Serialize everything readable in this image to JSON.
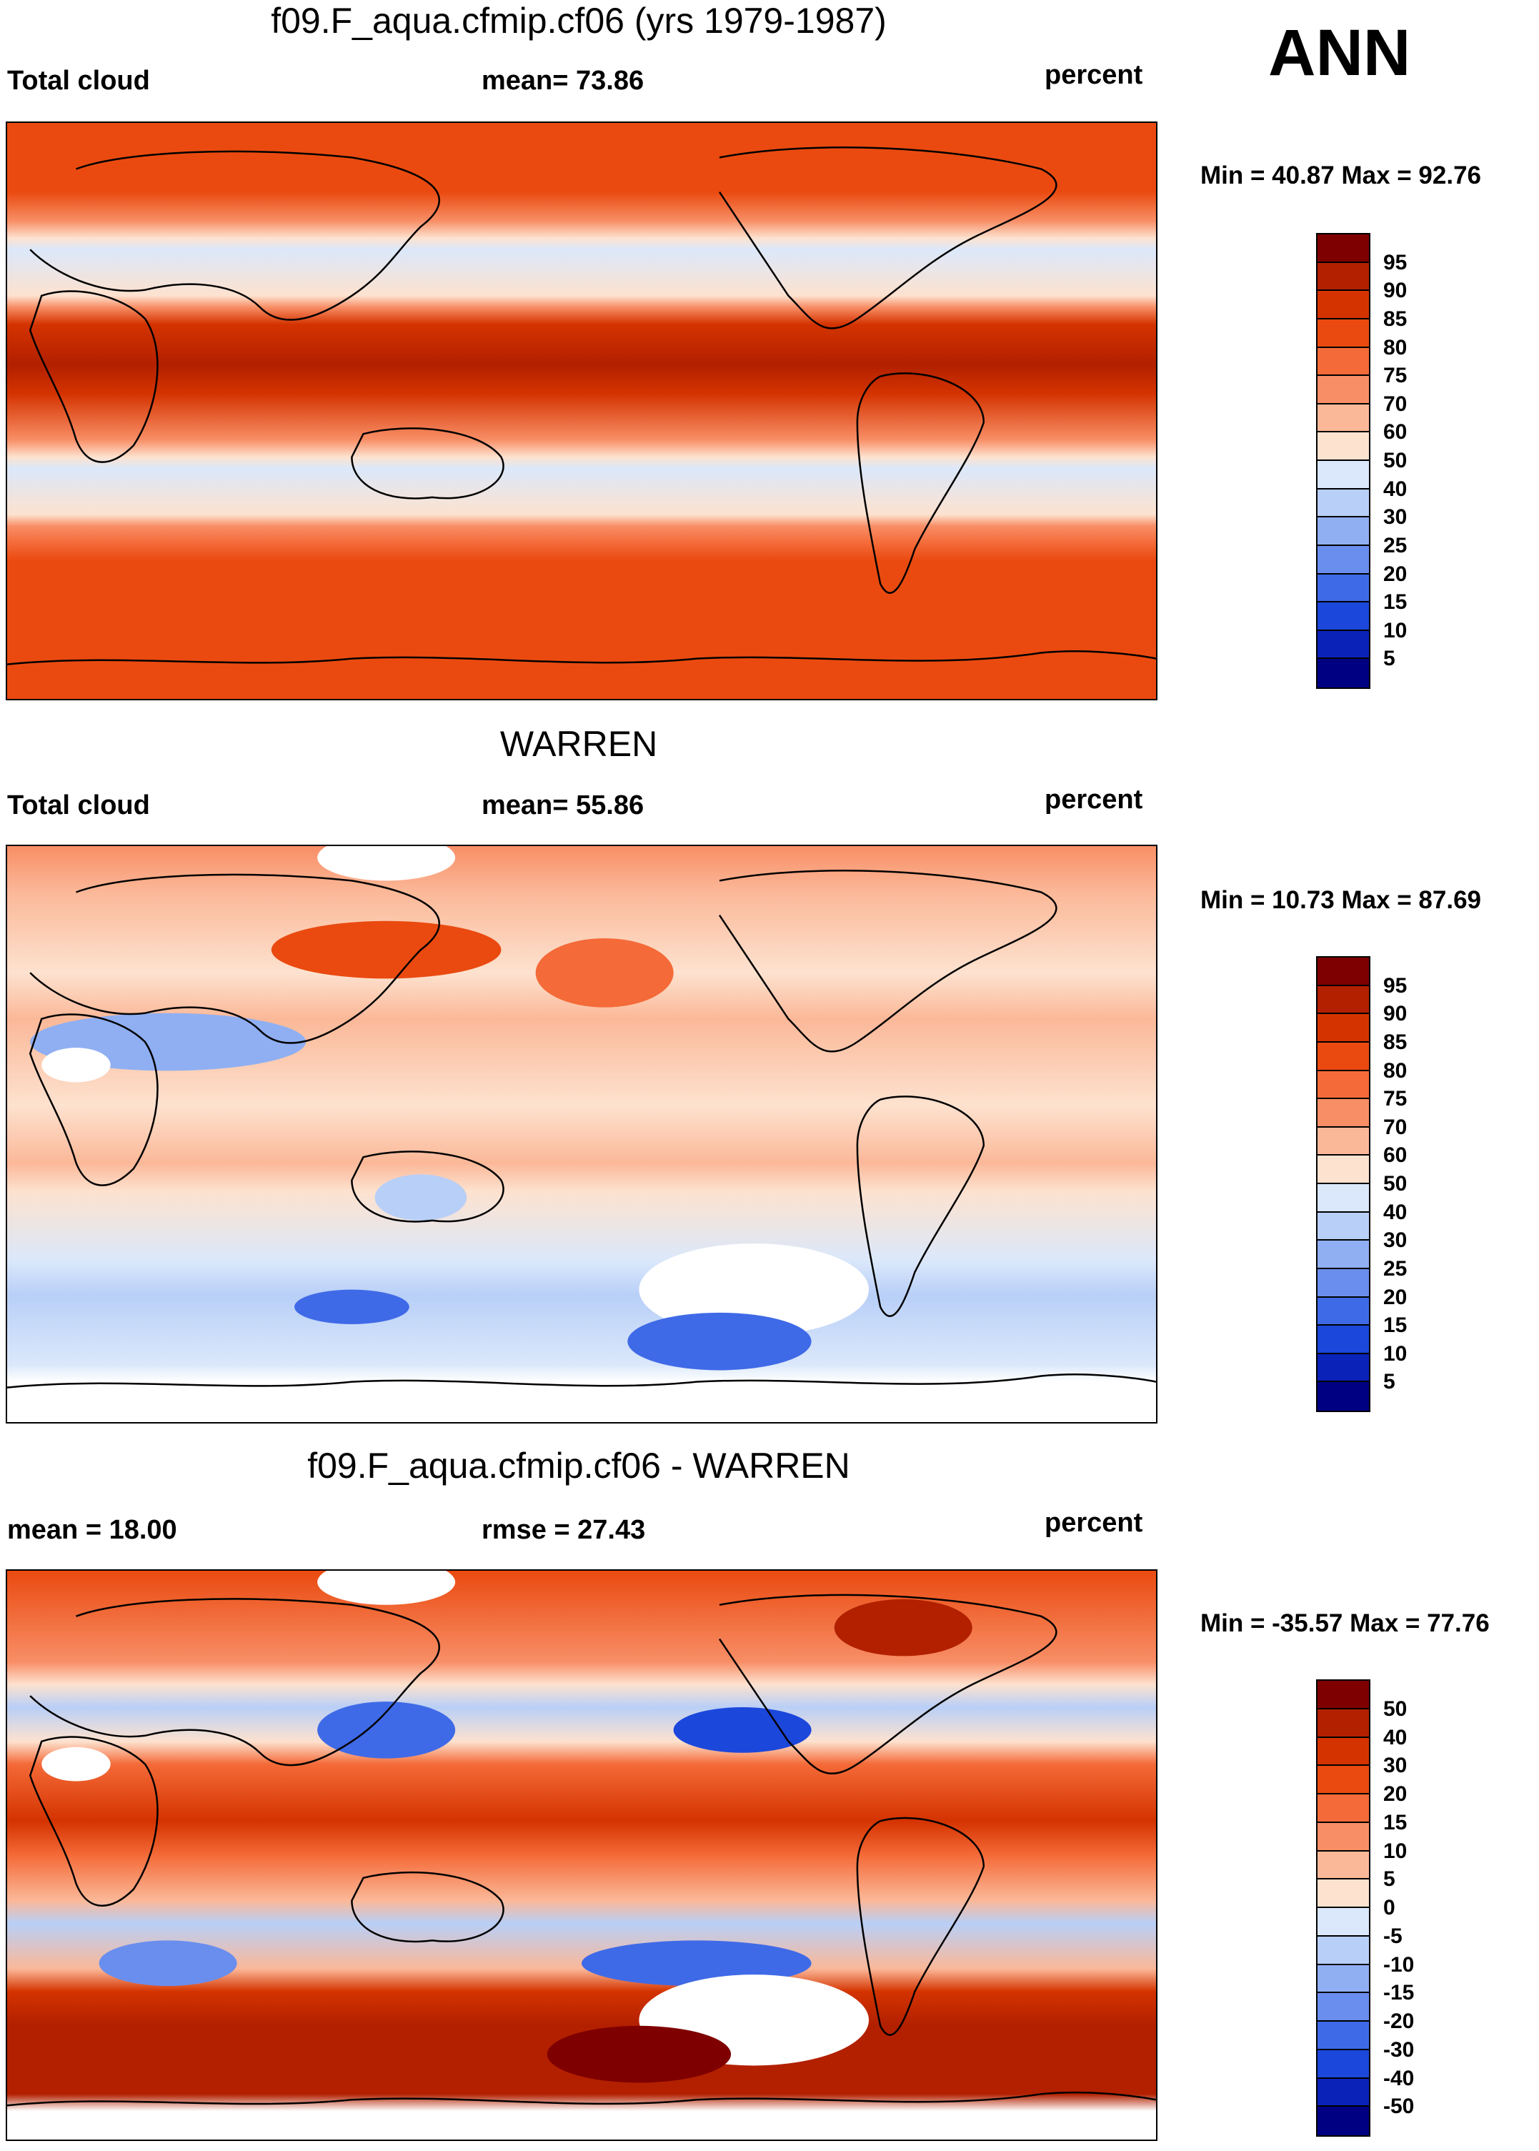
{
  "season": "ANN",
  "panels": [
    {
      "title": "f09.F_aqua.cfmip.cf06 (yrs 1979-1987)",
      "left_label": "Total cloud",
      "center_label": "mean=  73.86",
      "right_label": "percent",
      "minmax": "Min =  40.87 Max =  92.76",
      "field": "model"
    },
    {
      "title": "WARREN",
      "left_label": "Total cloud",
      "center_label": "mean=  55.86",
      "right_label": "percent",
      "minmax": "Min =  10.73 Max =  87.69",
      "field": "obs"
    },
    {
      "title": "f09.F_aqua.cfmip.cf06 - WARREN",
      "left_label": "mean =  18.00",
      "center_label": "rmse =  27.43",
      "right_label": "percent",
      "minmax": "Min = -35.57 Max =  77.76",
      "field": "diff"
    }
  ],
  "colorbars": {
    "abs": {
      "labels": [
        "95",
        "90",
        "85",
        "80",
        "75",
        "70",
        "60",
        "50",
        "40",
        "30",
        "25",
        "20",
        "15",
        "10",
        "5"
      ],
      "colors": [
        "#7f0000",
        "#b22000",
        "#d43300",
        "#ea4a10",
        "#f46a38",
        "#f88e66",
        "#fbb898",
        "#fde2cf",
        "#dbe8fb",
        "#b8cff7",
        "#8faff2",
        "#6a8eee",
        "#3f6ae7",
        "#1c47db",
        "#0b22b8",
        "#000082"
      ]
    },
    "diff": {
      "labels": [
        "50",
        "40",
        "30",
        "20",
        "15",
        "10",
        "5",
        "0",
        "-5",
        "-10",
        "-15",
        "-20",
        "-30",
        "-40",
        "-50"
      ],
      "colors": [
        "#7f0000",
        "#b22000",
        "#d43300",
        "#ea4a10",
        "#f46a38",
        "#f88e66",
        "#fbb898",
        "#fde2cf",
        "#dbe8fb",
        "#b8cff7",
        "#8faff2",
        "#6a8eee",
        "#3f6ae7",
        "#1c47db",
        "#0b22b8",
        "#000082"
      ]
    }
  }
}
